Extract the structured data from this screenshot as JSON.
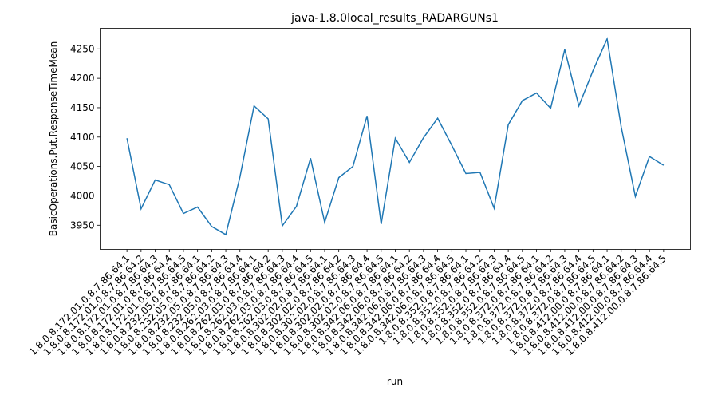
{
  "chart_data": {
    "type": "line",
    "title": "java-1.8.0local_results_RADARGUNs1",
    "x_label": "run",
    "y_label": "BasicOperations.Put.ResponseTimeMean",
    "categories": [
      "1.8.0.8.172.01.0.8.7.86.64.1",
      "1.8.0.8.172.01.0.8.7.86.64.2",
      "1.8.0.8.172.01.0.8.7.86.64.3",
      "1.8.0.8.172.01.0.8.7.86.64.4",
      "1.8.0.8.172.01.0.8.7.86.64.5",
      "1.8.0.8.232.05.0.8.7.86.64.1",
      "1.8.0.8.232.05.0.8.7.86.64.2",
      "1.8.0.8.232.05.0.8.7.86.64.3",
      "1.8.0.8.232.05.0.8.7.86.64.4",
      "1.8.0.8.262.03.0.8.7.86.64.1",
      "1.8.0.8.262.03.0.8.7.86.64.2",
      "1.8.0.8.262.03.0.8.7.86.64.3",
      "1.8.0.8.262.03.0.8.7.86.64.4",
      "1.8.0.8.262.03.0.8.7.86.64.5",
      "1.8.0.8.302.02.0.8.7.86.64.1",
      "1.8.0.8.302.02.0.8.7.86.64.2",
      "1.8.0.8.302.02.0.8.7.86.64.3",
      "1.8.0.8.302.02.0.8.7.86.64.4",
      "1.8.0.8.302.02.0.8.7.86.64.5",
      "1.8.0.8.342.06.0.8.7.86.64.1",
      "1.8.0.8.342.06.0.8.7.86.64.2",
      "1.8.0.8.342.06.0.8.7.86.64.3",
      "1.8.0.8.342.06.0.8.7.86.64.4",
      "1.8.0.8.342.06.0.8.7.86.64.5",
      "1.8.0.8.352.0.8.7.86.64.1",
      "1.8.0.8.352.0.8.7.86.64.2",
      "1.8.0.8.352.0.8.7.86.64.3",
      "1.8.0.8.352.0.8.7.86.64.4",
      "1.8.0.8.352.0.8.7.86.64.5",
      "1.8.0.8.372.0.8.7.86.64.1",
      "1.8.0.8.372.0.8.7.86.64.2",
      "1.8.0.8.372.0.8.7.86.64.3",
      "1.8.0.8.372.0.8.7.86.64.4",
      "1.8.0.8.372.0.8.7.86.64.5",
      "1.8.0.8.412.00.0.8.7.86.64.1",
      "1.8.0.8.412.00.0.8.7.86.64.2",
      "1.8.0.8.412.00.0.8.7.86.64.3",
      "1.8.0.8.412.00.0.8.7.86.64.4",
      "1.8.0.8.412.00.0.8.7.86.64.5"
    ],
    "values": [
      4098,
      3978,
      4027,
      4019,
      3970,
      3981,
      3948,
      3934,
      4032,
      4153,
      4131,
      3949,
      3982,
      4064,
      3955,
      4031,
      4050,
      4136,
      3952,
      4098,
      4057,
      4099,
      4132,
      4086,
      4038,
      4040,
      3979,
      4121,
      4162,
      4175,
      4149,
      4249,
      4153,
      4213,
      4267,
      4117,
      3999,
      4067,
      4052
    ],
    "color": "#1f77b4",
    "ylim": [
      3909,
      4285
    ],
    "yticks": [
      3950,
      4000,
      4050,
      4100,
      4150,
      4200,
      4250
    ]
  }
}
